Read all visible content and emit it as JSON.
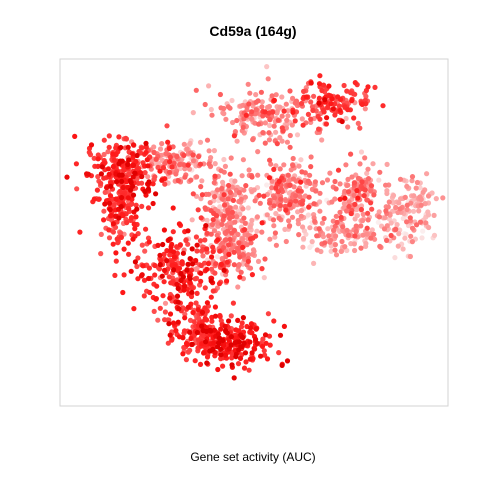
{
  "chart_data": {
    "type": "scatter",
    "title": "Cd59a (164g)",
    "xlabel": "Gene set activity (AUC)",
    "ylabel": "",
    "grid": false,
    "legend": "none",
    "axes_visible": false,
    "color_scale": {
      "low": "#fbeeee",
      "high": "#ff0000"
    },
    "clusters": [
      {
        "name": "",
        "center": [
          -1.2,
          2.2
        ],
        "spread": [
          1.7,
          1.4
        ],
        "n": 200,
        "activity_mean": 0.82,
        "activity_sd": 0.13
      },
      {
        "name": "",
        "center": [
          -1.5,
          0.4
        ],
        "spread": [
          1.0,
          1.8
        ],
        "n": 160,
        "activity_mean": 0.78,
        "activity_sd": 0.15
      },
      {
        "name": "",
        "center": [
          0.8,
          2.6
        ],
        "spread": [
          1.5,
          1.1
        ],
        "n": 140,
        "activity_mean": 0.38,
        "activity_sd": 0.16
      },
      {
        "name": "",
        "center": [
          1.0,
          -2.4
        ],
        "spread": [
          2.0,
          1.9
        ],
        "n": 250,
        "activity_mean": 0.8,
        "activity_sd": 0.14
      },
      {
        "name": "",
        "center": [
          2.9,
          0.6
        ],
        "spread": [
          1.2,
          2.0
        ],
        "n": 190,
        "activity_mean": 0.42,
        "activity_sd": 0.18
      },
      {
        "name": "",
        "center": [
          5.4,
          1.1
        ],
        "spread": [
          1.2,
          1.6
        ],
        "n": 190,
        "activity_mean": 0.45,
        "activity_sd": 0.17
      },
      {
        "name": "",
        "center": [
          4.6,
          4.9
        ],
        "spread": [
          2.2,
          1.3
        ],
        "n": 180,
        "activity_mean": 0.45,
        "activity_sd": 0.18
      },
      {
        "name": "",
        "center": [
          7.3,
          5.5
        ],
        "spread": [
          1.4,
          1.0
        ],
        "n": 130,
        "activity_mean": 0.72,
        "activity_sd": 0.15
      },
      {
        "name": "",
        "center": [
          8.2,
          1.2
        ],
        "spread": [
          1.0,
          1.4
        ],
        "n": 120,
        "activity_mean": 0.45,
        "activity_sd": 0.17
      },
      {
        "name": "",
        "center": [
          10.4,
          0.4
        ],
        "spread": [
          1.4,
          1.5
        ],
        "n": 150,
        "activity_mean": 0.28,
        "activity_sd": 0.14
      },
      {
        "name": "",
        "center": [
          7.8,
          -0.8
        ],
        "spread": [
          2.0,
          1.0
        ],
        "n": 140,
        "activity_mean": 0.35,
        "activity_sd": 0.16
      },
      {
        "name": "",
        "center": [
          3.2,
          -1.6
        ],
        "spread": [
          1.4,
          1.4
        ],
        "n": 140,
        "activity_mean": 0.48,
        "activity_sd": 0.18
      },
      {
        "name": "",
        "center": [
          3.2,
          -6.0
        ],
        "spread": [
          1.6,
          1.2
        ],
        "n": 200,
        "activity_mean": 0.88,
        "activity_sd": 0.1
      },
      {
        "name": "",
        "center": [
          1.6,
          -5.3
        ],
        "spread": [
          1.2,
          1.2
        ],
        "n": 130,
        "activity_mean": 0.82,
        "activity_sd": 0.12
      }
    ],
    "xlim": [
      -4,
      12
    ],
    "ylim": [
      -9,
      7.5
    ]
  }
}
